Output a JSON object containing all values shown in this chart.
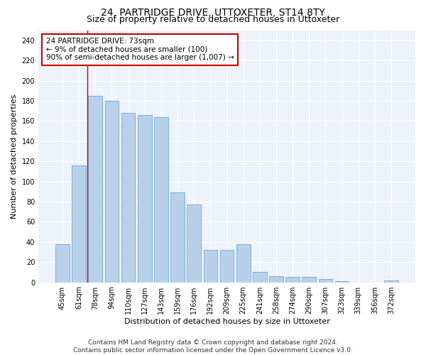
{
  "title": "24, PARTRIDGE DRIVE, UTTOXETER, ST14 8TY",
  "subtitle": "Size of property relative to detached houses in Uttoxeter",
  "xlabel": "Distribution of detached houses by size in Uttoxeter",
  "ylabel": "Number of detached properties",
  "categories": [
    "45sqm",
    "61sqm",
    "78sqm",
    "94sqm",
    "110sqm",
    "127sqm",
    "143sqm",
    "159sqm",
    "176sqm",
    "192sqm",
    "209sqm",
    "225sqm",
    "241sqm",
    "258sqm",
    "274sqm",
    "290sqm",
    "307sqm",
    "323sqm",
    "339sqm",
    "356sqm",
    "372sqm"
  ],
  "values": [
    38,
    116,
    185,
    180,
    168,
    166,
    164,
    89,
    77,
    32,
    32,
    38,
    10,
    6,
    5,
    5,
    3,
    1,
    0,
    0,
    2
  ],
  "bar_color": "#b8d0ea",
  "bar_edge_color": "#6aaad4",
  "vline_color": "#cc0000",
  "annotation_text": "24 PARTRIDGE DRIVE: 73sqm\n← 9% of detached houses are smaller (100)\n90% of semi-detached houses are larger (1,007) →",
  "annotation_box_color": "#ffffff",
  "annotation_box_edge_color": "#cc0000",
  "ylim": [
    0,
    250
  ],
  "yticks": [
    0,
    20,
    40,
    60,
    80,
    100,
    120,
    140,
    160,
    180,
    200,
    220,
    240
  ],
  "footer": "Contains HM Land Registry data © Crown copyright and database right 2024.\nContains public sector information licensed under the Open Government Licence v3.0.",
  "plot_bg_color": "#eef2f9",
  "title_fontsize": 10,
  "subtitle_fontsize": 9,
  "axis_label_fontsize": 8,
  "tick_fontsize": 7,
  "footer_fontsize": 6.5,
  "annotation_fontsize": 7.5
}
